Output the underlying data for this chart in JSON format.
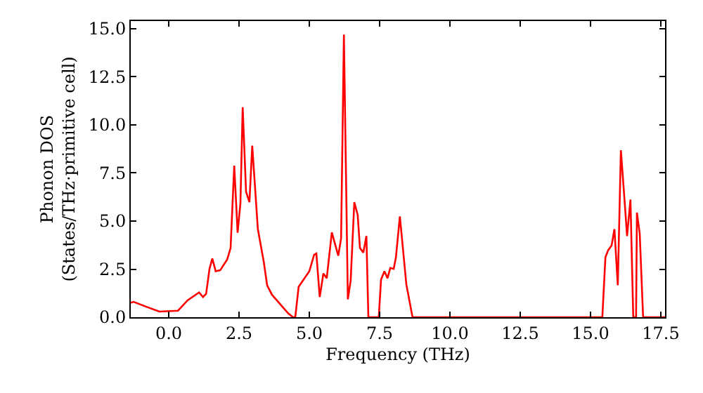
{
  "chart_data": {
    "type": "line",
    "xlabel": "Frequency (THz)",
    "ylabel": "Phonon DOS\n(States/THz·primitive cell)",
    "x": [
      -1.35,
      -1.25,
      -0.83,
      -0.33,
      0.33,
      0.67,
      1.08,
      1.22,
      1.33,
      1.45,
      1.55,
      1.67,
      1.83,
      2.08,
      2.2,
      2.33,
      2.45,
      2.55,
      2.63,
      2.75,
      2.87,
      2.97,
      3.17,
      3.38,
      3.5,
      3.67,
      4.25,
      4.42,
      4.5,
      4.62,
      5.0,
      5.17,
      5.25,
      5.37,
      5.5,
      5.62,
      5.8,
      6.03,
      6.13,
      6.23,
      6.37,
      6.47,
      6.6,
      6.72,
      6.8,
      6.92,
      7.03,
      7.1,
      7.47,
      7.55,
      7.67,
      7.78,
      7.88,
      8.0,
      8.08,
      8.22,
      8.45,
      8.67,
      15.42,
      15.53,
      15.63,
      15.75,
      15.85,
      15.97,
      16.08,
      16.2,
      16.3,
      16.42,
      16.52,
      16.62,
      16.65,
      16.75,
      16.87,
      17.65
    ],
    "series": [
      {
        "color": "#ff0000",
        "values": [
          0.75,
          0.8,
          0.56,
          0.29,
          0.34,
          0.88,
          1.29,
          1.05,
          1.22,
          2.51,
          3.05,
          2.39,
          2.44,
          3.0,
          3.6,
          7.88,
          4.39,
          5.93,
          10.92,
          6.53,
          5.98,
          8.92,
          4.58,
          2.88,
          1.66,
          1.17,
          0.2,
          0,
          0,
          1.58,
          2.39,
          3.24,
          3.31,
          1.05,
          2.27,
          2.03,
          4.41,
          3.2,
          4.1,
          14.7,
          0.93,
          1.9,
          5.98,
          5.32,
          3.6,
          3.36,
          4.22,
          0,
          0,
          1.95,
          2.39,
          2.03,
          2.56,
          2.51,
          3.12,
          5.24,
          1.71,
          0,
          0,
          3.12,
          3.49,
          3.73,
          4.58,
          1.66,
          8.68,
          6.29,
          4.22,
          6.12,
          0,
          0,
          5.44,
          4.34,
          0,
          0
        ]
      }
    ],
    "xlim": [
      -1.35,
      17.65
    ],
    "ylim": [
      0,
      15.4
    ],
    "xticks": [
      {
        "value": 0,
        "label": "0.0"
      },
      {
        "value": 2.5,
        "label": "2.5"
      },
      {
        "value": 5,
        "label": "5.0"
      },
      {
        "value": 7.5,
        "label": "7.5"
      },
      {
        "value": 10,
        "label": "10.0"
      },
      {
        "value": 12.5,
        "label": "12.5"
      },
      {
        "value": 15,
        "label": "15.0"
      },
      {
        "value": 17.5,
        "label": "17.5"
      }
    ],
    "yticks": [
      {
        "value": 0,
        "label": "0.0"
      },
      {
        "value": 2.5,
        "label": "2.5"
      },
      {
        "value": 5,
        "label": "5.0"
      },
      {
        "value": 7.5,
        "label": "7.5"
      },
      {
        "value": 10,
        "label": "10.0"
      },
      {
        "value": 12.5,
        "label": "12.5"
      },
      {
        "value": 15,
        "label": "15.0"
      }
    ],
    "grid": false,
    "marker": "none",
    "line_style": "solid"
  }
}
